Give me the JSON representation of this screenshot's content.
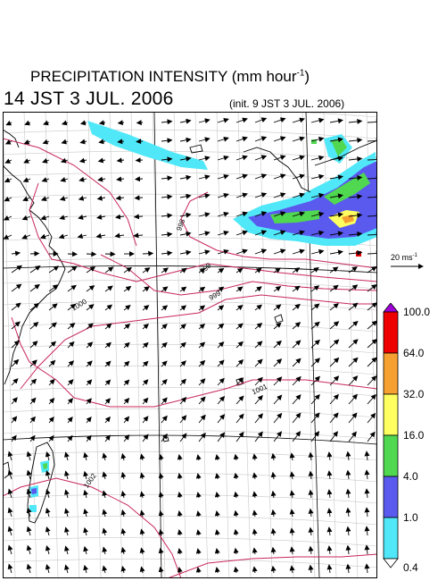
{
  "title": {
    "main": "PRECIPITATION INTENSITY (mm hour",
    "sup": "-1",
    "close": ")"
  },
  "valid_time": "14 JST 3 JUL. 2006",
  "init_time": "(init. 9 JST 3 JUL. 2006)",
  "reference_vector": {
    "label": "20 ms",
    "sup": "-1"
  },
  "colorbar": {
    "labels": [
      "100.0",
      "64.0",
      "32.0",
      "16.0",
      "4.0",
      "1.0",
      "0.4"
    ],
    "colors": [
      "#ee0000",
      "#f5a030",
      "#ffff60",
      "#50d850",
      "#5a5aee",
      "#50e8f8"
    ],
    "over_color": "#a000d8",
    "under_color": "#ffffff"
  },
  "isobar_labels": [
    "996",
    "998",
    "999",
    "1000",
    "1001",
    "1002"
  ]
}
